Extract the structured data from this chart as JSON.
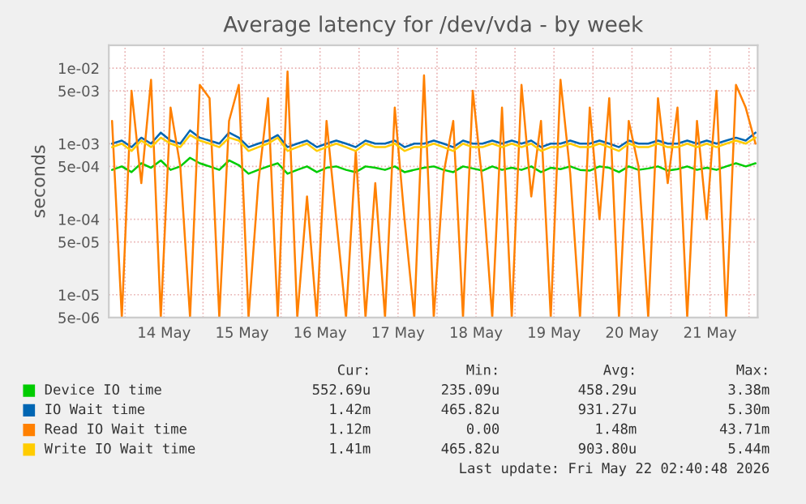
{
  "chart_data": {
    "type": "line",
    "title": "Average latency for /dev/vda - by week",
    "ylabel": "seconds",
    "x": [
      "2026-05-13T20:00",
      "2026-05-13T23:00",
      "2026-05-14T02:00",
      "2026-05-14T05:00",
      "2026-05-14T08:00",
      "2026-05-14T11:00",
      "2026-05-14T14:00",
      "2026-05-14T17:00",
      "2026-05-14T20:00",
      "2026-05-14T23:00",
      "2026-05-15T02:00",
      "2026-05-15T05:00",
      "2026-05-15T08:00",
      "2026-05-15T11:00",
      "2026-05-15T14:00",
      "2026-05-15T17:00",
      "2026-05-15T20:00",
      "2026-05-15T23:00",
      "2026-05-16T02:00",
      "2026-05-16T05:00",
      "2026-05-16T08:00",
      "2026-05-16T11:00",
      "2026-05-16T14:00",
      "2026-05-16T17:00",
      "2026-05-16T20:00",
      "2026-05-16T23:00",
      "2026-05-17T02:00",
      "2026-05-17T05:00",
      "2026-05-17T08:00",
      "2026-05-17T11:00",
      "2026-05-17T14:00",
      "2026-05-17T17:00",
      "2026-05-17T20:00",
      "2026-05-17T23:00",
      "2026-05-18T02:00",
      "2026-05-18T05:00",
      "2026-05-18T08:00",
      "2026-05-18T11:00",
      "2026-05-18T14:00",
      "2026-05-18T17:00",
      "2026-05-18T20:00",
      "2026-05-18T23:00",
      "2026-05-19T02:00",
      "2026-05-19T05:00",
      "2026-05-19T08:00",
      "2026-05-19T11:00",
      "2026-05-19T14:00",
      "2026-05-19T17:00",
      "2026-05-19T20:00",
      "2026-05-19T23:00",
      "2026-05-20T02:00",
      "2026-05-20T05:00",
      "2026-05-20T08:00",
      "2026-05-20T11:00",
      "2026-05-20T14:00",
      "2026-05-20T17:00",
      "2026-05-20T20:00",
      "2026-05-20T23:00",
      "2026-05-21T02:00",
      "2026-05-21T05:00",
      "2026-05-21T08:00",
      "2026-05-21T11:00",
      "2026-05-21T14:00",
      "2026-05-21T17:00",
      "2026-05-21T20:00",
      "2026-05-21T23:00",
      "2026-05-22T02:00"
    ],
    "series": [
      {
        "name": "Device IO time",
        "color": "#00cc00",
        "values": [
          0.00045,
          0.0005,
          0.00042,
          0.00055,
          0.00048,
          0.0006,
          0.00045,
          0.0005,
          0.00065,
          0.00055,
          0.0005,
          0.00045,
          0.0006,
          0.00052,
          0.0004,
          0.00045,
          0.0005,
          0.00055,
          0.0004,
          0.00045,
          0.0005,
          0.00042,
          0.00048,
          0.0005,
          0.00045,
          0.00042,
          0.0005,
          0.00048,
          0.00045,
          0.0005,
          0.00042,
          0.00045,
          0.00048,
          0.0005,
          0.00045,
          0.00042,
          0.0005,
          0.00047,
          0.00044,
          0.0005,
          0.00045,
          0.00048,
          0.00045,
          0.0005,
          0.00042,
          0.00048,
          0.00046,
          0.0005,
          0.00045,
          0.00044,
          0.0005,
          0.00048,
          0.00042,
          0.0005,
          0.00045,
          0.00047,
          0.0005,
          0.00044,
          0.00046,
          0.0005,
          0.00045,
          0.00048,
          0.00045,
          0.0005,
          0.00055,
          0.0005,
          0.00055
        ]
      },
      {
        "name": "IO Wait time",
        "color": "#0066b3",
        "values": [
          0.001,
          0.0011,
          0.0009,
          0.0012,
          0.001,
          0.0014,
          0.0011,
          0.001,
          0.0015,
          0.0012,
          0.0011,
          0.001,
          0.0014,
          0.0012,
          0.0009,
          0.001,
          0.0011,
          0.0013,
          0.0009,
          0.001,
          0.0011,
          0.0009,
          0.001,
          0.0011,
          0.001,
          0.0009,
          0.0011,
          0.001,
          0.001,
          0.0011,
          0.0009,
          0.001,
          0.001,
          0.0011,
          0.001,
          0.0009,
          0.0011,
          0.001,
          0.001,
          0.0011,
          0.001,
          0.0011,
          0.001,
          0.0011,
          0.0009,
          0.001,
          0.001,
          0.0011,
          0.001,
          0.001,
          0.0011,
          0.001,
          0.0009,
          0.0011,
          0.001,
          0.001,
          0.0011,
          0.001,
          0.001,
          0.0011,
          0.001,
          0.0011,
          0.001,
          0.0011,
          0.0012,
          0.0011,
          0.0014
        ]
      },
      {
        "name": "Read IO Wait time",
        "color": "#ff8000",
        "values": [
          0.002,
          5e-06,
          0.005,
          0.0003,
          0.007,
          5e-06,
          0.003,
          0.0005,
          5e-06,
          0.006,
          0.004,
          5e-06,
          0.002,
          0.006,
          5e-06,
          0.0003,
          0.004,
          5e-06,
          0.009,
          5e-06,
          0.0002,
          5e-06,
          0.002,
          0.0001,
          5e-06,
          0.0008,
          5e-06,
          0.0003,
          5e-06,
          0.003,
          0.0001,
          5e-06,
          0.008,
          5e-06,
          0.0004,
          0.002,
          5e-06,
          0.005,
          0.0003,
          5e-06,
          0.003,
          5e-06,
          0.006,
          0.0002,
          0.002,
          5e-06,
          0.007,
          0.0004,
          5e-06,
          0.003,
          0.0001,
          0.004,
          5e-06,
          0.002,
          0.0005,
          5e-06,
          0.004,
          0.0003,
          0.003,
          5e-06,
          0.002,
          0.0001,
          0.005,
          5e-06,
          0.006,
          0.003,
          0.001
        ]
      },
      {
        "name": "Write IO Wait time",
        "color": "#ffcc00",
        "values": [
          0.0009,
          0.001,
          0.0008,
          0.0011,
          0.0009,
          0.0012,
          0.001,
          0.0009,
          0.0013,
          0.0011,
          0.001,
          0.0009,
          0.0012,
          0.0011,
          0.0008,
          0.0009,
          0.001,
          0.0012,
          0.0008,
          0.0009,
          0.001,
          0.0008,
          0.0009,
          0.001,
          0.0009,
          0.0008,
          0.001,
          0.0009,
          0.0009,
          0.001,
          0.0008,
          0.0009,
          0.0009,
          0.001,
          0.0009,
          0.0008,
          0.001,
          0.0009,
          0.0009,
          0.001,
          0.0009,
          0.001,
          0.0009,
          0.001,
          0.0008,
          0.0009,
          0.0009,
          0.001,
          0.0009,
          0.0009,
          0.001,
          0.0009,
          0.0008,
          0.001,
          0.0009,
          0.0009,
          0.001,
          0.0009,
          0.0009,
          0.001,
          0.0009,
          0.001,
          0.0009,
          0.001,
          0.0011,
          0.001,
          0.0012
        ]
      }
    ],
    "log": "y",
    "ylim": [
      5e-06,
      0.02
    ],
    "yticks": [
      {
        "value": 0.01,
        "label": "1e-02"
      },
      {
        "value": 0.005,
        "label": "5e-03"
      },
      {
        "value": 0.001,
        "label": "1e-03"
      },
      {
        "value": 0.0005,
        "label": "5e-04"
      },
      {
        "value": 0.0001,
        "label": "1e-04"
      },
      {
        "value": 5e-05,
        "label": "5e-05"
      },
      {
        "value": 1e-05,
        "label": "1e-05"
      },
      {
        "value": 5e-06,
        "label": "5e-06"
      }
    ],
    "xlim": [
      "2026-05-13T19:00",
      "2026-05-22T02:40"
    ],
    "xticks": [
      {
        "value": "2026-05-14T00:00",
        "label": null
      },
      {
        "value": "2026-05-14T12:00",
        "label": "14 May"
      },
      {
        "value": "2026-05-15T00:00",
        "label": null
      },
      {
        "value": "2026-05-15T12:00",
        "label": "15 May"
      },
      {
        "value": "2026-05-16T00:00",
        "label": null
      },
      {
        "value": "2026-05-16T12:00",
        "label": "16 May"
      },
      {
        "value": "2026-05-17T00:00",
        "label": null
      },
      {
        "value": "2026-05-17T12:00",
        "label": "17 May"
      },
      {
        "value": "2026-05-18T00:00",
        "label": null
      },
      {
        "value": "2026-05-18T12:00",
        "label": "18 May"
      },
      {
        "value": "2026-05-19T00:00",
        "label": null
      },
      {
        "value": "2026-05-19T12:00",
        "label": "19 May"
      },
      {
        "value": "2026-05-20T00:00",
        "label": null
      },
      {
        "value": "2026-05-20T12:00",
        "label": "20 May"
      },
      {
        "value": "2026-05-21T00:00",
        "label": null
      },
      {
        "value": "2026-05-21T12:00",
        "label": "21 May"
      },
      {
        "value": "2026-05-22T00:00",
        "label": null
      }
    ],
    "grid": true,
    "legend": "bottom",
    "marker": "none",
    "line_style": "solid",
    "annotations": [
      "Cur:",
      "Min:",
      "Avg:",
      "Max:",
      "552.69u",
      "235.09u",
      "458.29u",
      "3.38m",
      "1.42m",
      "465.82u",
      "931.27u",
      "5.30m",
      "1.12m",
      "0.00",
      "1.48m",
      "43.71m",
      "1.41m",
      "465.82u",
      "903.80u",
      "5.44m",
      "Last update: Fri May 22 02:40:48 2026"
    ]
  }
}
